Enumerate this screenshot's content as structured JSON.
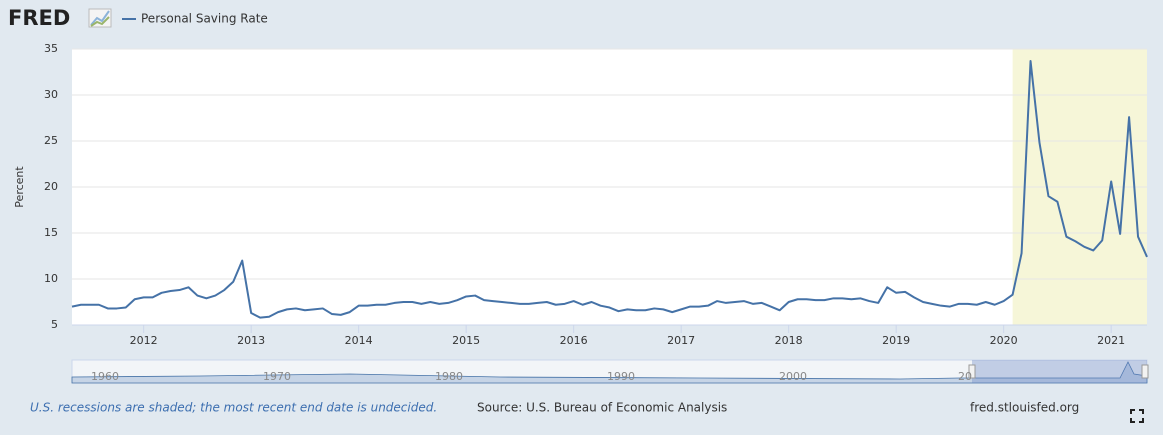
{
  "logo": "FRED",
  "chart_data": {
    "type": "line",
    "series": [
      {
        "name": "Personal Saving Rate",
        "color": "#4572a7",
        "values": [
          7.0,
          7.2,
          7.2,
          7.2,
          6.8,
          6.8,
          6.9,
          7.8,
          8.0,
          8.0,
          8.5,
          8.7,
          8.8,
          9.1,
          8.2,
          7.9,
          8.2,
          8.8,
          9.7,
          12.0,
          6.3,
          5.8,
          5.9,
          6.4,
          6.7,
          6.8,
          6.6,
          6.7,
          6.8,
          6.2,
          6.1,
          6.4,
          7.1,
          7.1,
          7.2,
          7.2,
          7.4,
          7.5,
          7.5,
          7.3,
          7.5,
          7.3,
          7.4,
          7.7,
          8.1,
          8.2,
          7.7,
          7.6,
          7.5,
          7.4,
          7.3,
          7.3,
          7.4,
          7.5,
          7.2,
          7.3,
          7.6,
          7.2,
          7.5,
          7.1,
          6.9,
          6.5,
          6.7,
          6.6,
          6.6,
          6.8,
          6.7,
          6.4,
          6.7,
          7.0,
          7.0,
          7.1,
          7.6,
          7.4,
          7.5,
          7.6,
          7.3,
          7.4,
          7.0,
          6.6,
          7.5,
          7.8,
          7.8,
          7.7,
          7.7,
          7.9,
          7.9,
          7.8,
          7.9,
          7.6,
          7.4,
          9.1,
          8.5,
          8.6,
          8.0,
          7.5,
          7.3,
          7.1,
          7.0,
          7.3,
          7.3,
          7.2,
          7.5,
          7.2,
          7.6,
          8.3,
          12.8,
          33.7,
          24.8,
          19.0,
          18.4,
          14.6,
          14.1,
          13.5,
          13.1,
          14.2,
          20.6,
          14.9,
          27.6,
          14.6,
          12.4
        ]
      }
    ],
    "x": [
      "2011-05",
      "2011-06",
      "2011-07",
      "2011-08",
      "2011-09",
      "2011-10",
      "2011-11",
      "2011-12",
      "2012-01",
      "2012-02",
      "2012-03",
      "2012-04",
      "2012-05",
      "2012-06",
      "2012-07",
      "2012-08",
      "2012-09",
      "2012-10",
      "2012-11",
      "2012-12",
      "2013-01",
      "2013-02",
      "2013-03",
      "2013-04",
      "2013-05",
      "2013-06",
      "2013-07",
      "2013-08",
      "2013-09",
      "2013-10",
      "2013-11",
      "2013-12",
      "2014-01",
      "2014-02",
      "2014-03",
      "2014-04",
      "2014-05",
      "2014-06",
      "2014-07",
      "2014-08",
      "2014-09",
      "2014-10",
      "2014-11",
      "2014-12",
      "2015-01",
      "2015-02",
      "2015-03",
      "2015-04",
      "2015-05",
      "2015-06",
      "2015-07",
      "2015-08",
      "2015-09",
      "2015-10",
      "2015-11",
      "2015-12",
      "2016-01",
      "2016-02",
      "2016-03",
      "2016-04",
      "2016-05",
      "2016-06",
      "2016-07",
      "2016-08",
      "2016-09",
      "2016-10",
      "2016-11",
      "2016-12",
      "2017-01",
      "2017-02",
      "2017-03",
      "2017-04",
      "2017-05",
      "2017-06",
      "2017-07",
      "2017-08",
      "2017-09",
      "2017-10",
      "2017-11",
      "2017-12",
      "2018-01",
      "2018-02",
      "2018-03",
      "2018-04",
      "2018-05",
      "2018-06",
      "2018-07",
      "2018-08",
      "2018-09",
      "2018-10",
      "2018-11",
      "2018-12",
      "2019-01",
      "2019-02",
      "2019-03",
      "2019-04",
      "2019-05",
      "2019-06",
      "2019-07",
      "2019-08",
      "2019-09",
      "2019-10",
      "2019-11",
      "2019-12",
      "2020-01",
      "2020-02",
      "2020-03",
      "2020-04",
      "2020-05",
      "2020-06",
      "2020-07",
      "2020-08",
      "2020-09",
      "2020-10",
      "2020-11",
      "2020-12",
      "2021-01",
      "2021-02",
      "2021-03",
      "2021-04",
      "2021-05"
    ],
    "xlim": [
      "2011-05",
      "2021-05"
    ],
    "xticks": [
      2012,
      2013,
      2014,
      2015,
      2016,
      2017,
      2018,
      2019,
      2020,
      2021
    ],
    "ylim": [
      5,
      35
    ],
    "yticks": [
      5,
      10,
      15,
      20,
      25,
      30,
      35
    ],
    "grid": true,
    "ylabel": "Percent",
    "recessions": [
      {
        "start": "2020-02",
        "end": "2021-05"
      }
    ],
    "navigator_ticks": [
      "1960",
      "1970",
      "1980",
      "1990",
      "2000",
      "20"
    ]
  },
  "footer": {
    "note": "U.S. recessions are shaded; the most recent end date is undecided.",
    "source": "Source: U.S. Bureau of Economic Analysis",
    "site": "fred.stlouisfed.org"
  }
}
